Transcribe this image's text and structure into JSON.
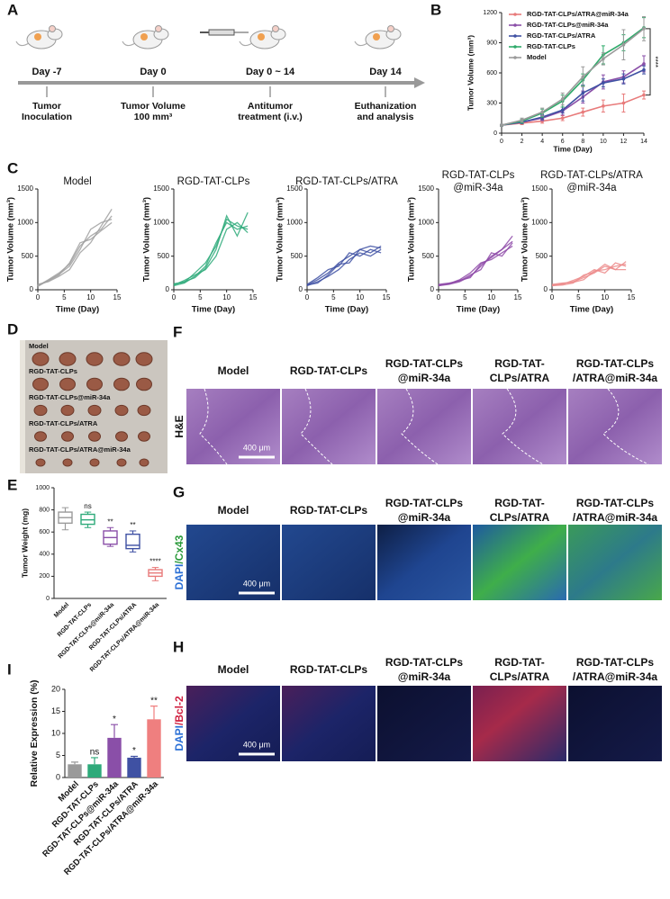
{
  "panel_labels": [
    "A",
    "B",
    "C",
    "D",
    "E",
    "F",
    "G",
    "H",
    "I"
  ],
  "timeline": {
    "days": [
      "Day -7",
      "Day 0",
      "Day 0 ~ 14",
      "Day 14"
    ],
    "events": [
      [
        "Tumor",
        "Inoculation"
      ],
      [
        "Tumor Volume",
        "100 mm³"
      ],
      [
        "Antitumor",
        "treatment (i.v.)"
      ],
      [
        "Euthanization",
        "and analysis"
      ]
    ]
  },
  "chart_data": [
    {
      "type": "line",
      "xlabel": "Time (Day)",
      "ylabel": "Tumor Volume (mm³)",
      "legend": "upper left",
      "annotation": "****",
      "x": [
        0,
        2,
        4,
        6,
        8,
        10,
        12,
        14
      ],
      "xlim": [
        0,
        14
      ],
      "xticks": [
        0,
        2,
        4,
        6,
        8,
        10,
        12,
        14
      ],
      "ylim": [
        0,
        1200
      ],
      "yticks": [
        0,
        300,
        600,
        900,
        1200
      ],
      "series": [
        {
          "name": "RGD-TAT-CLPs/ATRA@miR-34a",
          "color": "#e87b7b",
          "values": [
            80,
            100,
            120,
            150,
            210,
            270,
            300,
            380
          ],
          "errors": [
            10,
            15,
            20,
            25,
            40,
            60,
            90,
            40
          ]
        },
        {
          "name": "RGD-TAT-CLPs@miR-34a",
          "color": "#8a4fa8",
          "values": [
            80,
            110,
            150,
            220,
            360,
            510,
            560,
            690
          ],
          "errors": [
            10,
            15,
            25,
            40,
            60,
            70,
            60,
            80
          ]
        },
        {
          "name": "RGD-TAT-CLPs/ATRA",
          "color": "#3f51a3",
          "values": [
            80,
            110,
            160,
            230,
            400,
            500,
            540,
            630
          ],
          "errors": [
            10,
            15,
            25,
            30,
            80,
            40,
            50,
            40
          ]
        },
        {
          "name": "RGD-TAT-CLPs",
          "color": "#2eaa6a",
          "values": [
            80,
            120,
            200,
            320,
            530,
            780,
            900,
            1050
          ],
          "errors": [
            10,
            20,
            40,
            60,
            60,
            90,
            80,
            100
          ]
        },
        {
          "name": "Model",
          "color": "#9a9a9a",
          "values": [
            80,
            130,
            210,
            340,
            560,
            740,
            880,
            1040
          ],
          "errors": [
            10,
            20,
            40,
            60,
            100,
            60,
            150,
            120
          ]
        }
      ]
    },
    {
      "type": "line",
      "title": [
        "Model"
      ],
      "xlabel": "Time (Day)",
      "ylabel": "Tumor Volume (mm³)",
      "x": [
        0,
        2,
        4,
        6,
        8,
        10,
        12,
        14
      ],
      "xlim": [
        0,
        15
      ],
      "xticks": [
        0,
        5,
        10,
        15
      ],
      "ylim": [
        0,
        1500
      ],
      "yticks": [
        0,
        500,
        1000,
        1500
      ],
      "series": [
        {
          "color": "#a0a0a0",
          "values": [
            60,
            150,
            250,
            380,
            650,
            800,
            900,
            1100
          ]
        },
        {
          "color": "#a0a0a0",
          "values": [
            80,
            120,
            200,
            300,
            550,
            700,
            950,
            1200
          ]
        },
        {
          "color": "#a0a0a0",
          "values": [
            50,
            140,
            230,
            350,
            600,
            900,
            1000,
            1050
          ]
        },
        {
          "color": "#a0a0a0",
          "values": [
            70,
            130,
            220,
            400,
            700,
            750,
            880,
            1000
          ]
        }
      ]
    },
    {
      "type": "line",
      "title": [
        "RGD-TAT-CLPs"
      ],
      "xlabel": "Time (Day)",
      "ylabel": "Tumor Volume (mm³)",
      "x": [
        0,
        2,
        4,
        6,
        8,
        10,
        12,
        14
      ],
      "xlim": [
        0,
        15
      ],
      "xticks": [
        0,
        5,
        10,
        15
      ],
      "ylim": [
        0,
        1500
      ],
      "yticks": [
        0,
        500,
        1000,
        1500
      ],
      "series": [
        {
          "color": "#2eaa7a",
          "values": [
            80,
            120,
            180,
            320,
            600,
            1100,
            800,
            1150
          ]
        },
        {
          "color": "#2eaa7a",
          "values": [
            60,
            100,
            200,
            350,
            700,
            1000,
            900,
            950
          ]
        },
        {
          "color": "#2eaa7a",
          "values": [
            70,
            140,
            220,
            300,
            500,
            900,
            1000,
            850
          ]
        },
        {
          "color": "#2eaa7a",
          "values": [
            90,
            110,
            250,
            400,
            650,
            1050,
            950,
            900
          ]
        }
      ]
    },
    {
      "type": "line",
      "title": [
        "RGD-TAT-CLPs/ATRA"
      ],
      "xlabel": "Time (Day)",
      "ylabel": "Tumor Volume (mm³)",
      "x": [
        0,
        2,
        4,
        6,
        8,
        10,
        12,
        14
      ],
      "xlim": [
        0,
        15
      ],
      "xticks": [
        0,
        5,
        10,
        15
      ],
      "ylim": [
        0,
        1500
      ],
      "yticks": [
        0,
        500,
        1000,
        1500
      ],
      "series": [
        {
          "color": "#3f51a3",
          "values": [
            70,
            150,
            250,
            400,
            500,
            600,
            650,
            620
          ]
        },
        {
          "color": "#3f51a3",
          "values": [
            60,
            120,
            200,
            300,
            450,
            550,
            500,
            600
          ]
        },
        {
          "color": "#3f51a3",
          "values": [
            80,
            180,
            300,
            350,
            550,
            500,
            600,
            550
          ]
        },
        {
          "color": "#3f51a3",
          "values": [
            70,
            100,
            220,
            380,
            400,
            600,
            550,
            650
          ]
        }
      ]
    },
    {
      "type": "line",
      "title": [
        "RGD-TAT-CLPs",
        "@miR-34a"
      ],
      "xlabel": "Time (Day)",
      "ylabel": "Tumor Volume (mm³)",
      "x": [
        0,
        2,
        4,
        6,
        8,
        10,
        12,
        14
      ],
      "xlim": [
        0,
        15
      ],
      "xticks": [
        0,
        5,
        10,
        15
      ],
      "ylim": [
        0,
        1500
      ],
      "yticks": [
        0,
        500,
        1000,
        1500
      ],
      "series": [
        {
          "color": "#8e4aa8",
          "values": [
            60,
            80,
            120,
            200,
            350,
            500,
            600,
            800
          ]
        },
        {
          "color": "#8e4aa8",
          "values": [
            70,
            90,
            150,
            250,
            400,
            450,
            550,
            650
          ]
        },
        {
          "color": "#8e4aa8",
          "values": [
            80,
            100,
            130,
            220,
            300,
            550,
            500,
            700
          ]
        },
        {
          "color": "#8e4aa8",
          "values": [
            60,
            90,
            140,
            180,
            380,
            480,
            600,
            720
          ]
        }
      ]
    },
    {
      "type": "line",
      "title": [
        "RGD-TAT-CLPs/ATRA",
        "@miR-34a"
      ],
      "xlabel": "Time (Day)",
      "ylabel": "Tumor Volume (mm³)",
      "x": [
        0,
        2,
        4,
        6,
        8,
        10,
        12,
        14
      ],
      "xlim": [
        0,
        15
      ],
      "xticks": [
        0,
        5,
        10,
        15
      ],
      "ylim": [
        0,
        1500
      ],
      "yticks": [
        0,
        500,
        1000,
        1500
      ],
      "series": [
        {
          "color": "#ec8a8a",
          "values": [
            60,
            90,
            120,
            180,
            250,
            350,
            300,
            420
          ]
        },
        {
          "color": "#ec8a8a",
          "values": [
            70,
            80,
            140,
            200,
            300,
            250,
            400,
            350
          ]
        },
        {
          "color": "#ec8a8a",
          "values": [
            80,
            100,
            110,
            150,
            280,
            300,
            350,
            380
          ]
        },
        {
          "color": "#ec8a8a",
          "values": [
            60,
            70,
            100,
            220,
            260,
            380,
            300,
            300
          ]
        }
      ]
    },
    {
      "type": "box",
      "ylabel": "Tumor Weight (mg)",
      "categories": [
        "Model",
        "RGD-TAT-CLPs",
        "RGD-TAT-CLPs@miR-34a",
        "RGD-TAT-CLPs/ATRA",
        "RGD-TAT-CLPs/ATRA@miR-34a"
      ],
      "colors": [
        "#9a9a9a",
        "#2eaa7a",
        "#8a4fa8",
        "#3f51a3",
        "#e87b7b"
      ],
      "ylim": [
        0,
        1000
      ],
      "yticks": [
        0,
        200,
        400,
        600,
        800,
        1000
      ],
      "boxes": [
        {
          "min": 620,
          "q1": 680,
          "median": 730,
          "q3": 780,
          "max": 820
        },
        {
          "min": 640,
          "q1": 670,
          "median": 710,
          "q3": 760,
          "max": 780
        },
        {
          "min": 470,
          "q1": 490,
          "median": 550,
          "q3": 610,
          "max": 640
        },
        {
          "min": 420,
          "q1": 450,
          "median": 480,
          "q3": 580,
          "max": 610
        },
        {
          "min": 160,
          "q1": 200,
          "median": 230,
          "q3": 260,
          "max": 280
        }
      ],
      "annotations": [
        null,
        "ns",
        "**",
        "**",
        "****"
      ]
    },
    {
      "type": "bar",
      "ylabel": "Relative Expression (%)",
      "categories": [
        "Model",
        "RGD-TAT-CLPs",
        "RGD-TAT-CLPs@miR-34a",
        "RGD-TAT-CLPs/ATRA",
        "RGD-TAT-CLPs/ATRA@miR-34a"
      ],
      "colors": [
        "#9a9a9a",
        "#2eaa7a",
        "#8a4fa8",
        "#3f51a3",
        "#ef7f7f"
      ],
      "ylim": [
        0,
        20
      ],
      "yticks": [
        0,
        5,
        10,
        15,
        20
      ],
      "values": [
        3.0,
        3.0,
        9.0,
        4.5,
        13.2
      ],
      "errors": [
        0.5,
        1.5,
        3.0,
        0.3,
        3.0
      ],
      "annotations": [
        null,
        "ns",
        "*",
        "*",
        "**"
      ]
    }
  ],
  "tumor_photo": {
    "rows": [
      "Model",
      "RGD-TAT-CLPs",
      "RGD-TAT-CLPs@miR-34a",
      "RGD-TAT-CLPs/ATRA",
      "RGD-TAT-CLPs/ATRA@miR-34a"
    ]
  },
  "stains": {
    "columns": [
      [
        "Model"
      ],
      [
        "RGD-TAT-CLPs"
      ],
      [
        "RGD-TAT-CLPs",
        "@miR-34a"
      ],
      [
        "RGD-TAT-",
        "CLPs/ATRA"
      ],
      [
        "RGD-TAT-CLPs",
        "/ATRA@miR-34a"
      ]
    ],
    "rows": [
      {
        "label_parts": [
          {
            "text": "H&E",
            "color": "#111111"
          }
        ],
        "scale_bar": "400 μm"
      },
      {
        "label_parts": [
          {
            "text": "DAPI",
            "color": "#2a6fd6"
          },
          {
            "text": "/Cx43",
            "color": "#2a9a3a"
          }
        ],
        "scale_bar": "400 μm"
      },
      {
        "label_parts": [
          {
            "text": "DAPI",
            "color": "#2a6fd6"
          },
          {
            "text": "/Bcl-2",
            "color": "#d02040"
          }
        ],
        "scale_bar": "400 μm"
      }
    ]
  }
}
